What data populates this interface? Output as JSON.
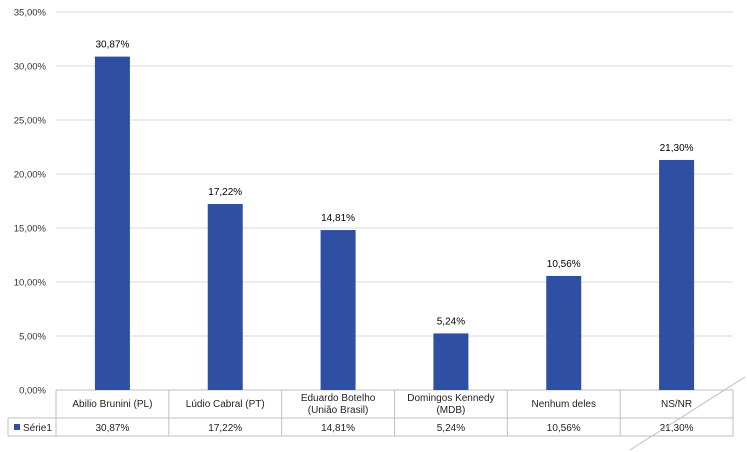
{
  "chart_data": {
    "type": "bar",
    "categories": [
      [
        "Abilio Brunini (PL)"
      ],
      [
        "Lúdio Cabral (PT)"
      ],
      [
        "Eduardo Botelho",
        "(União Brasil)"
      ],
      [
        "Domingos Kennedy",
        "(MDB)"
      ],
      [
        "Nenhum deles"
      ],
      [
        "NS/NR"
      ]
    ],
    "series": [
      {
        "name": "Série1",
        "values": [
          30.87,
          17.22,
          14.81,
          5.24,
          10.56,
          21.3
        ],
        "labels": [
          "30,87%",
          "17,22%",
          "14,81%",
          "5,24%",
          "10,56%",
          "21,30%"
        ]
      }
    ],
    "ylim": [
      0,
      35
    ],
    "yticks": [
      0,
      5,
      10,
      15,
      20,
      25,
      30,
      35
    ],
    "ytick_labels": [
      "0,00%",
      "5,00%",
      "10,00%",
      "15,00%",
      "20,00%",
      "25,00%",
      "30,00%",
      "35,00%"
    ],
    "grid": true,
    "legend": "data-table",
    "colors": {
      "bar": "#2F4FA2",
      "grid": "#D9D9D9",
      "axis": "#BFBFBF"
    }
  }
}
